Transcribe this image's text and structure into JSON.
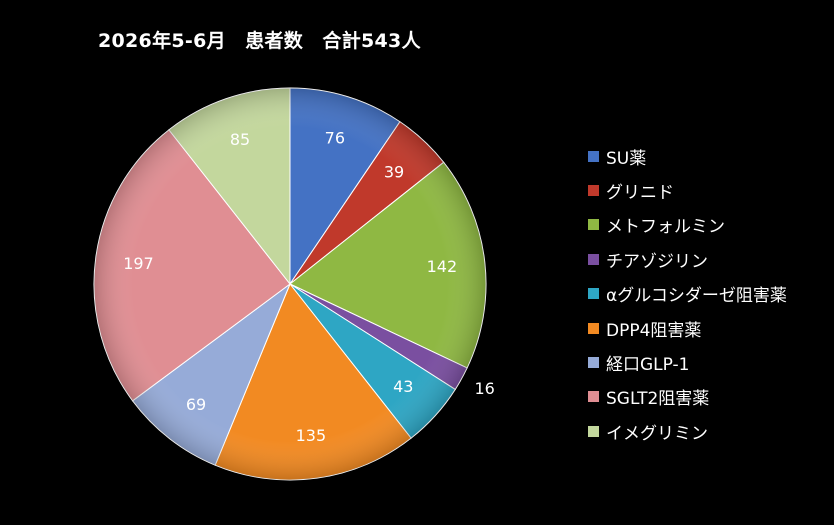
{
  "chart_data": {
    "type": "pie",
    "title": "2026年5-6月　患者数　合計543人",
    "categories": [
      "SU薬",
      "グリニド",
      "メトフォルミン",
      "チアゾジリン",
      "αグルコシダーゼ阻害薬",
      "DPP4阻害薬",
      "経口GLP-1",
      "SGLT2阻害薬",
      "イメグリミン"
    ],
    "values": [
      76,
      39,
      142,
      16,
      43,
      135,
      69,
      197,
      85
    ],
    "colors": [
      "#4472c4",
      "#c0392b",
      "#8fb843",
      "#7a4fa0",
      "#2ea6c4",
      "#f28a22",
      "#96abd8",
      "#e08e93",
      "#c3d79d"
    ],
    "legend_position": "right",
    "start_angle": "top",
    "direction": "clockwise"
  }
}
